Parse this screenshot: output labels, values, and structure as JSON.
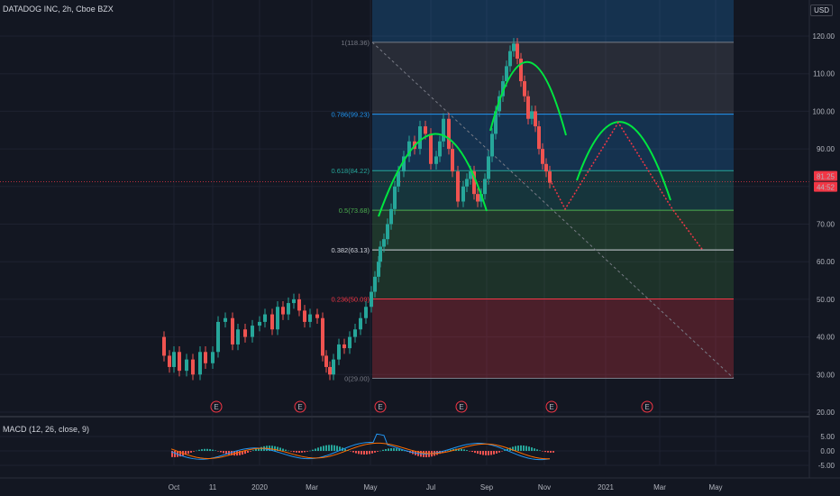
{
  "header": {
    "title": "DATADOG INC, 2h, Cboe BZX",
    "currency": "USD"
  },
  "chart_data": [
    {
      "type": "candlestick",
      "symbol": "DATADOG INC",
      "interval": "2h",
      "exchange": "Cboe BZX",
      "x_tick_labels": [
        "Oct",
        "11",
        "2020",
        "Mar",
        "May",
        "Jul",
        "Sep",
        "Nov",
        "2021",
        "Mar",
        "May"
      ],
      "y_tick_labels": [
        "120.00",
        "110.00",
        "100.00",
        "90.00",
        "80.00",
        "70.00",
        "60.00",
        "50.00",
        "40.00",
        "30.00",
        "20.00"
      ],
      "ylim": [
        20,
        120
      ],
      "price_tags": [
        {
          "label": "81.25",
          "color": "#f23645"
        },
        {
          "label": "44:52",
          "color": "#f23645"
        }
      ],
      "fib_levels": [
        {
          "label": "1(118.36)",
          "value": 118.36,
          "color": "#787b86"
        },
        {
          "label": "0.786(99.23)",
          "value": 99.23,
          "color": "#2196f3"
        },
        {
          "label": "0.618(84.22)",
          "value": 84.22,
          "color": "#26a69a"
        },
        {
          "label": "0.5(73.68)",
          "value": 73.68,
          "color": "#4caf50"
        },
        {
          "label": "0.382(63.13)",
          "value": 63.13,
          "color": "#d1d4dc"
        },
        {
          "label": "0.236(50.09)",
          "value": 50.09,
          "color": "#f23645"
        },
        {
          "label": "0(29.00)",
          "value": 29.0,
          "color": "#787b86"
        }
      ],
      "price_path": [
        {
          "x": "Sep",
          "y": 41
        },
        {
          "x": "Oct",
          "y": 33
        },
        {
          "x": "Oct",
          "y": 36
        },
        {
          "x": "Oct",
          "y": 30
        },
        {
          "x": "11",
          "y": 36
        },
        {
          "x": "11",
          "y": 45
        },
        {
          "x": "11",
          "y": 40
        },
        {
          "x": "2020",
          "y": 44
        },
        {
          "x": "2020",
          "y": 48
        },
        {
          "x": "2020",
          "y": 50
        },
        {
          "x": "Mar",
          "y": 45
        },
        {
          "x": "Mar",
          "y": 32
        },
        {
          "x": "Mar",
          "y": 36
        },
        {
          "x": "Mar",
          "y": 38
        },
        {
          "x": "May",
          "y": 45
        },
        {
          "x": "May",
          "y": 52
        },
        {
          "x": "May",
          "y": 63
        },
        {
          "x": "May",
          "y": 70
        },
        {
          "x": "Jul",
          "y": 82
        },
        {
          "x": "Jul",
          "y": 96
        },
        {
          "x": "Jul",
          "y": 84
        },
        {
          "x": "Jul",
          "y": 96
        },
        {
          "x": "Sep",
          "y": 73
        },
        {
          "x": "Sep",
          "y": 84
        },
        {
          "x": "Sep",
          "y": 90
        },
        {
          "x": "Sep",
          "y": 108
        },
        {
          "x": "Sep",
          "y": 118
        },
        {
          "x": "Nov",
          "y": 100
        },
        {
          "x": "Nov",
          "y": 88
        },
        {
          "x": "Nov",
          "y": 81
        }
      ],
      "projection": [
        {
          "x": "Nov",
          "y": 81
        },
        {
          "x": "Nov",
          "y": 74
        },
        {
          "x": "2021",
          "y": 97
        },
        {
          "x": "Mar",
          "y": 74
        },
        {
          "x": "Mar",
          "y": 63
        }
      ],
      "earnings_markers": [
        "E",
        "E",
        "E",
        "E",
        "E",
        "E"
      ]
    },
    {
      "type": "histogram",
      "title": "MACD (12, 26, close, 9)",
      "y_tick_labels": [
        "5.00",
        "0.00",
        "-5.00"
      ],
      "ylim": [
        -5,
        5
      ]
    }
  ]
}
